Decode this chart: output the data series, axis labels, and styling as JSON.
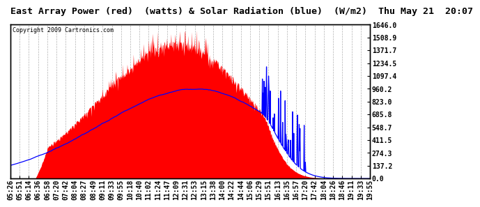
{
  "title": "East Array Power (red)  (watts) & Solar Radiation (blue)  (W/m2)  Thu May 21  20:07",
  "copyright": "Copyright 2009 Cartronics.com",
  "ylabel_right_ticks": [
    0.0,
    137.2,
    274.3,
    411.5,
    548.7,
    685.8,
    823.0,
    960.2,
    1097.4,
    1234.5,
    1371.7,
    1508.9,
    1646.0
  ],
  "ymax": 1646.0,
  "ymin": 0.0,
  "bg_color": "#ffffff",
  "grid_color": "#aaaaaa",
  "fill_color": "red",
  "line_color": "blue",
  "title_fontsize": 9.5,
  "tick_fontsize": 7,
  "copyright_fontsize": 6,
  "x_tick_labels": [
    "05:26",
    "05:51",
    "06:14",
    "06:36",
    "06:58",
    "07:20",
    "07:42",
    "08:04",
    "08:27",
    "08:49",
    "09:11",
    "09:33",
    "09:55",
    "10:18",
    "10:40",
    "11:02",
    "11:24",
    "11:47",
    "12:09",
    "12:31",
    "12:53",
    "13:15",
    "13:38",
    "14:00",
    "14:22",
    "14:44",
    "15:06",
    "15:29",
    "15:51",
    "16:13",
    "16:35",
    "16:57",
    "17:20",
    "17:42",
    "18:04",
    "18:26",
    "18:46",
    "19:11",
    "19:33",
    "19:55"
  ]
}
